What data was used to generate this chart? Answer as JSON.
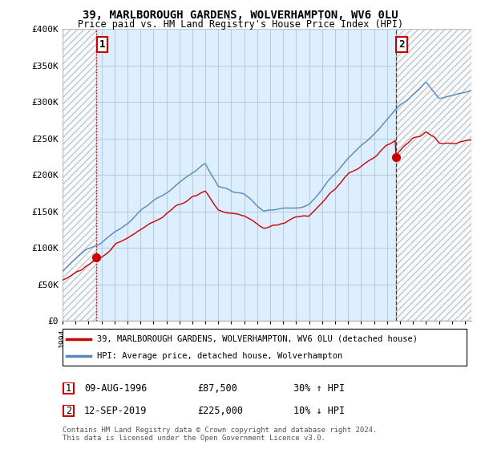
{
  "title": "39, MARLBOROUGH GARDENS, WOLVERHAMPTON, WV6 0LU",
  "subtitle": "Price paid vs. HM Land Registry's House Price Index (HPI)",
  "sale1_date": "09-AUG-1996",
  "sale1_price": 87500,
  "sale1_label": "1",
  "sale1_hpi_pct": "30% ↑ HPI",
  "sale2_date": "12-SEP-2019",
  "sale2_price": 225000,
  "sale2_label": "2",
  "sale2_hpi_pct": "10% ↓ HPI",
  "legend_line1": "39, MARLBOROUGH GARDENS, WOLVERHAMPTON, WV6 0LU (detached house)",
  "legend_line2": "HPI: Average price, detached house, Wolverhampton",
  "footer1": "Contains HM Land Registry data © Crown copyright and database right 2024.",
  "footer2": "This data is licensed under the Open Government Licence v3.0.",
  "ylim": [
    0,
    400000
  ],
  "yticks": [
    0,
    50000,
    100000,
    150000,
    200000,
    250000,
    300000,
    350000,
    400000
  ],
  "ytick_labels": [
    "£0",
    "£50K",
    "£100K",
    "£150K",
    "£200K",
    "£250K",
    "£300K",
    "£350K",
    "£400K"
  ],
  "xmin": 1994.0,
  "xmax": 2025.5,
  "hatch_left_xmin": 1994.0,
  "hatch_left_xmax": 1996.62,
  "hatch_right_xmin": 2019.7,
  "hatch_right_xmax": 2025.5,
  "sale1_x": 1996.62,
  "sale2_x": 2019.7,
  "red_color": "#cc0000",
  "blue_color": "#5588bb",
  "chart_bg": "#ddeeff",
  "hatch_color": "#bbbbbb",
  "background_color": "#ffffff",
  "grid_color": "#bbccdd"
}
